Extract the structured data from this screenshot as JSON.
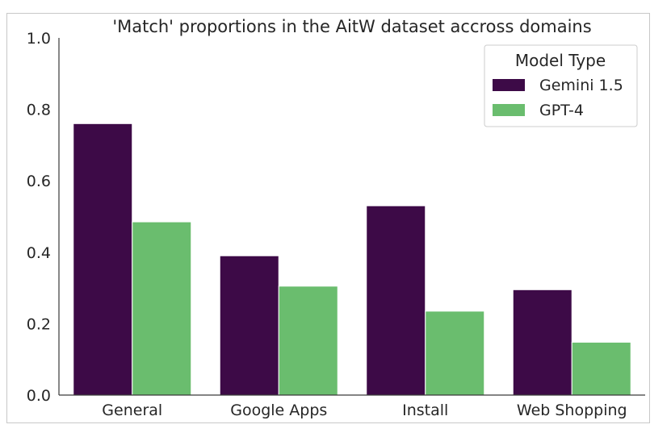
{
  "chart_data": {
    "type": "bar",
    "title": "'Match' proportions in the AitW dataset accross domains",
    "xlabel": "",
    "ylabel": "",
    "categories": [
      "General",
      "Google Apps",
      "Install",
      "Web Shopping"
    ],
    "series": [
      {
        "name": "Gemini 1.5",
        "color": "#3d0a47",
        "values": [
          0.76,
          0.39,
          0.53,
          0.295
        ]
      },
      {
        "name": "GPT-4",
        "color": "#6abd6e",
        "values": [
          0.485,
          0.305,
          0.235,
          0.148
        ]
      }
    ],
    "ylim": [
      0,
      1.0
    ],
    "yticks": [
      "0.0",
      "0.2",
      "0.4",
      "0.6",
      "0.8",
      "1.0"
    ],
    "legend": {
      "title": "Model Type",
      "position": "top-right"
    },
    "grid": false
  }
}
